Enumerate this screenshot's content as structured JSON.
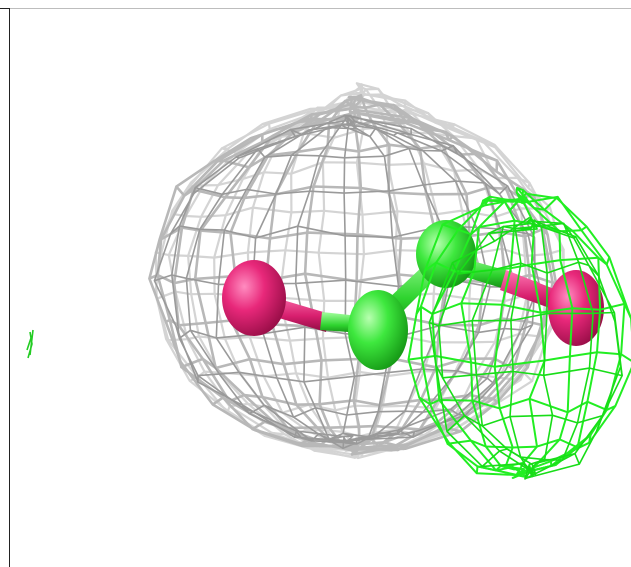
{
  "viewer": {
    "background_color": "#ffffff",
    "mesh_primary_color": "#b8b8b8",
    "mesh_secondary_color": "#22ee22",
    "atom_magenta_color": "#e8287a",
    "atom_green_color": "#3ee83e",
    "stray_fragment_color": "#22cc22"
  }
}
